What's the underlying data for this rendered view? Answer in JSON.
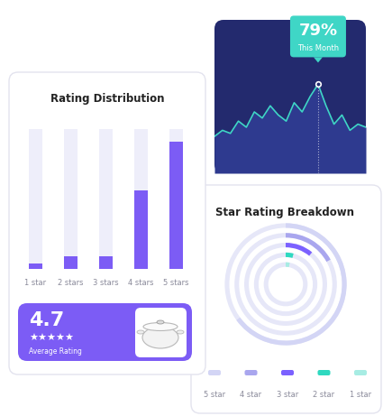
{
  "chart_data": [
    {
      "type": "bar",
      "title": "Rating Distribution",
      "categories": [
        "1 star",
        "2 stars",
        "3 stars",
        "4 stars",
        "5 stars"
      ],
      "values": [
        4,
        9,
        9,
        56,
        91
      ],
      "ylim": [
        0,
        100
      ],
      "color": "#7c5cf5",
      "tick_labels": "x"
    },
    {
      "type": "line",
      "x": [
        0,
        1,
        2,
        3,
        4,
        5,
        6,
        7,
        8,
        9,
        10,
        11,
        12,
        13,
        14,
        15,
        16,
        17,
        18,
        19
      ],
      "values": [
        62,
        64,
        63,
        67,
        65,
        70,
        68,
        72,
        69,
        67,
        73,
        70,
        75,
        79,
        72,
        66,
        69,
        64,
        66,
        65
      ],
      "xlim": [
        0,
        19
      ],
      "ylim": [
        50,
        100
      ],
      "color": "#3fd6c6",
      "tick_labels": false,
      "annotations": [
        {
          "x": 13,
          "value": 79,
          "label": "79%",
          "text": "This Month"
        }
      ]
    },
    {
      "type": "radial",
      "title": "Star Rating Breakdown",
      "categories": [
        "5 star",
        "4 star",
        "3 star",
        "2 star",
        "1 star"
      ],
      "values": [
        65,
        17,
        11,
        4,
        3
      ],
      "colors": [
        "#d3d5f5",
        "#a9a6ee",
        "#7b61ff",
        "#2fd9c0",
        "#a7ece3"
      ],
      "legend": "bottom"
    }
  ],
  "rating_card": {
    "value": 4.7,
    "stars": "★★★★★",
    "label": "Average Rating"
  }
}
